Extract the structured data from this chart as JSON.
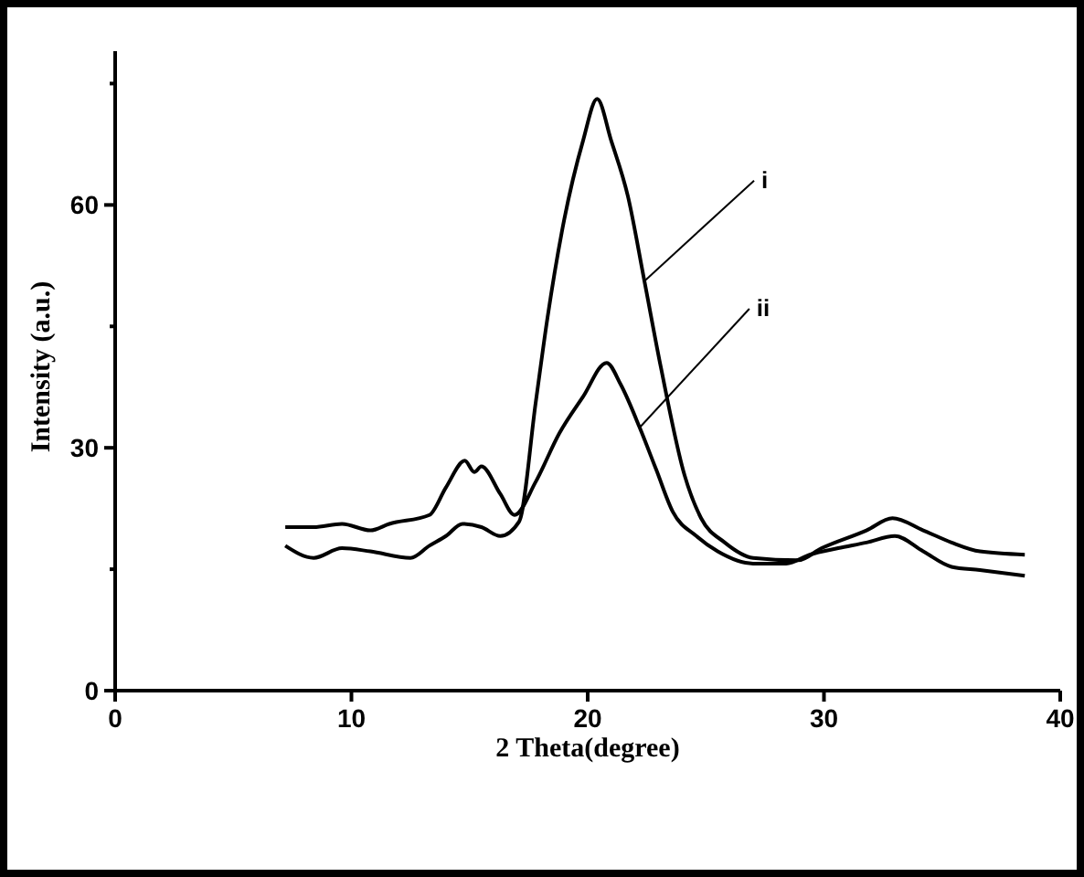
{
  "chart_data": {
    "type": "line",
    "xlabel": "2 Theta(degree)",
    "ylabel": "Intensity (a.u.)",
    "xlim": [
      0,
      40
    ],
    "xticks": [
      0,
      10,
      20,
      30,
      40
    ],
    "ylim": [
      0,
      79
    ],
    "yticks": [
      0,
      {
        "value": 15,
        "label": null
      },
      30,
      {
        "value": 45,
        "label": null
      },
      60,
      {
        "value": 75,
        "label": null
      }
    ],
    "grid": false,
    "marker": "none",
    "line_style": "solid",
    "series": [
      {
        "color": "#000000",
        "x": [
          7.2,
          8.4,
          9.6,
          10.8,
          12.5,
          13.3,
          14.0,
          14.7,
          15.5,
          16.3,
          17.1,
          17.8,
          18.3,
          19.0,
          19.8,
          20.4,
          21.0,
          21.7,
          22.4,
          23.1,
          24.1,
          24.8,
          25.8,
          27.0,
          28.9,
          29.9,
          31.8,
          32.9,
          34.2,
          35.4,
          36.6,
          38.5
        ],
        "values": [
          17.9,
          16.4,
          17.6,
          17.2,
          16.4,
          17.9,
          19.1,
          20.6,
          20.2,
          19.1,
          20.9,
          35.6,
          46.1,
          58.1,
          67.9,
          73.1,
          67.9,
          61.1,
          50.6,
          39.9,
          26.6,
          21.3,
          18.3,
          16.4,
          16.1,
          17.6,
          19.8,
          21.3,
          19.8,
          18.3,
          17.2,
          16.8
        ]
      },
      {
        "color": "#000000",
        "x": [
          7.2,
          8.4,
          9.6,
          10.8,
          11.6,
          13.3,
          14.0,
          14.8,
          15.2,
          15.5,
          16.3,
          16.9,
          17.8,
          18.8,
          19.8,
          20.8,
          21.4,
          22.2,
          22.9,
          23.6,
          24.6,
          25.5,
          27.0,
          28.4,
          29.4,
          30.6,
          31.8,
          33.0,
          34.2,
          35.4,
          36.6,
          38.5
        ],
        "values": [
          20.2,
          20.2,
          20.6,
          19.8,
          20.6,
          21.7,
          25.1,
          28.4,
          27.0,
          27.7,
          24.3,
          21.7,
          25.8,
          31.8,
          36.3,
          40.5,
          37.8,
          32.5,
          27.3,
          22.1,
          19.1,
          17.2,
          15.7,
          15.7,
          16.8,
          17.6,
          18.3,
          19.1,
          17.2,
          15.3,
          14.9,
          14.2
        ]
      }
    ],
    "annotations": [
      {
        "text": "i",
        "x": 22.4,
        "y": 50.6
      },
      {
        "text": "ii",
        "x": 22.2,
        "y": 32.5
      }
    ]
  }
}
